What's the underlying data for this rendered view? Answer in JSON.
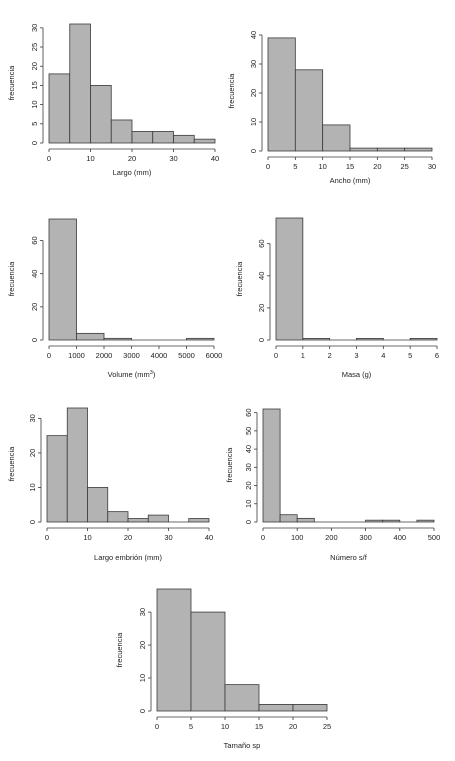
{
  "chart_data": [
    {
      "type": "bar",
      "subtype": "histogram",
      "bin_edges": [
        0,
        5,
        10,
        15,
        20,
        25,
        30,
        35,
        40
      ],
      "values": [
        18,
        31,
        15,
        6,
        3,
        3,
        2,
        1
      ],
      "xlim": [
        0,
        40
      ],
      "ylim": [
        0,
        31
      ],
      "xticks": [
        0,
        10,
        20,
        30,
        40
      ],
      "yticks": [
        0,
        5,
        10,
        15,
        20,
        25,
        30
      ],
      "xtick_labels": [
        "0",
        "10",
        "20",
        "30",
        "40"
      ],
      "ytick_labels": [
        "0",
        "5",
        "10",
        "15",
        "20",
        "25",
        "30"
      ],
      "xlabel": "Largo (mm)",
      "ylabel": "frecuencia"
    },
    {
      "type": "bar",
      "subtype": "histogram",
      "bin_edges": [
        0,
        5,
        10,
        15,
        20,
        25,
        30
      ],
      "values": [
        39,
        28,
        9,
        1,
        1,
        1
      ],
      "xlim": [
        0,
        30
      ],
      "ylim": [
        0,
        40
      ],
      "xticks": [
        0,
        5,
        10,
        15,
        20,
        25,
        30
      ],
      "yticks": [
        0,
        10,
        20,
        30,
        40
      ],
      "xtick_labels": [
        "0",
        "5",
        "10",
        "15",
        "20",
        "25",
        "30"
      ],
      "ytick_labels": [
        "0",
        "10",
        "20",
        "30",
        "40"
      ],
      "xlabel": "Ancho (mm)",
      "ylabel": "frecuencia"
    },
    {
      "type": "bar",
      "subtype": "histogram",
      "bin_edges": [
        0,
        1000,
        2000,
        3000,
        4000,
        5000,
        6000
      ],
      "values": [
        73,
        4,
        1,
        0,
        0,
        1
      ],
      "xlim": [
        0,
        6000
      ],
      "ylim": [
        0,
        73
      ],
      "xticks": [
        0,
        1000,
        2000,
        3000,
        4000,
        5000,
        6000
      ],
      "yticks": [
        0,
        20,
        40,
        60
      ],
      "xtick_labels": [
        "0",
        "1000",
        "2000",
        "3000",
        "4000",
        "5000",
        "6000"
      ],
      "ytick_labels": [
        "0",
        "20",
        "40",
        "60"
      ],
      "xlabel": "Volume (mm",
      "xlabel_sup": "3",
      "xlabel_end": ")",
      "ylabel": "frecuencia"
    },
    {
      "type": "bar",
      "subtype": "histogram",
      "bin_edges": [
        0,
        1,
        2,
        3,
        4,
        5,
        6
      ],
      "values": [
        76,
        1,
        0,
        1,
        0,
        1
      ],
      "xlim": [
        0,
        6
      ],
      "ylim": [
        0,
        76
      ],
      "xticks": [
        0,
        1,
        2,
        3,
        4,
        5,
        6
      ],
      "yticks": [
        0,
        20,
        40,
        60
      ],
      "xtick_labels": [
        "0",
        "1",
        "2",
        "3",
        "4",
        "5",
        "6"
      ],
      "ytick_labels": [
        "0",
        "20",
        "40",
        "60"
      ],
      "xlabel": "Masa (g)",
      "ylabel": "frecuencia"
    },
    {
      "type": "bar",
      "subtype": "histogram",
      "bin_edges": [
        0,
        5,
        10,
        15,
        20,
        25,
        30,
        35,
        40
      ],
      "values": [
        25,
        33,
        10,
        3,
        1,
        2,
        0,
        1
      ],
      "xlim": [
        0,
        40
      ],
      "ylim": [
        0,
        33
      ],
      "xticks": [
        0,
        10,
        20,
        30,
        40
      ],
      "yticks": [
        0,
        10,
        20,
        30
      ],
      "xtick_labels": [
        "0",
        "10",
        "20",
        "30",
        "40"
      ],
      "ytick_labels": [
        "0",
        "10",
        "20",
        "30"
      ],
      "xlabel": "Largo embrión (mm)",
      "ylabel": "frecuencia"
    },
    {
      "type": "bar",
      "subtype": "histogram",
      "bin_edges": [
        0,
        50,
        100,
        150,
        200,
        250,
        300,
        350,
        400,
        450,
        500
      ],
      "values": [
        62,
        4,
        2,
        0,
        0,
        0,
        1,
        1,
        0,
        1
      ],
      "xlim": [
        0,
        500
      ],
      "ylim": [
        0,
        62
      ],
      "xticks": [
        0,
        100,
        200,
        300,
        400,
        500
      ],
      "yticks": [
        0,
        10,
        20,
        30,
        40,
        50,
        60
      ],
      "xtick_labels": [
        "0",
        "100",
        "200",
        "300",
        "400",
        "500"
      ],
      "ytick_labels": [
        "0",
        "10",
        "20",
        "30",
        "40",
        "50",
        "60"
      ],
      "xlabel": "Número s/f",
      "ylabel": "frecuencia"
    },
    {
      "type": "bar",
      "subtype": "histogram",
      "bin_edges": [
        0,
        5,
        10,
        15,
        20,
        25
      ],
      "values": [
        37,
        30,
        8,
        2,
        2
      ],
      "xlim": [
        0,
        25
      ],
      "ylim": [
        0,
        37
      ],
      "xticks": [
        0,
        5,
        10,
        15,
        20,
        25
      ],
      "yticks": [
        0,
        10,
        20,
        30
      ],
      "xtick_labels": [
        "0",
        "5",
        "10",
        "15",
        "20",
        "25"
      ],
      "ytick_labels": [
        "0",
        "10",
        "20",
        "30"
      ],
      "xlabel": "Tamaño sp",
      "ylabel": "frecuencia"
    }
  ]
}
